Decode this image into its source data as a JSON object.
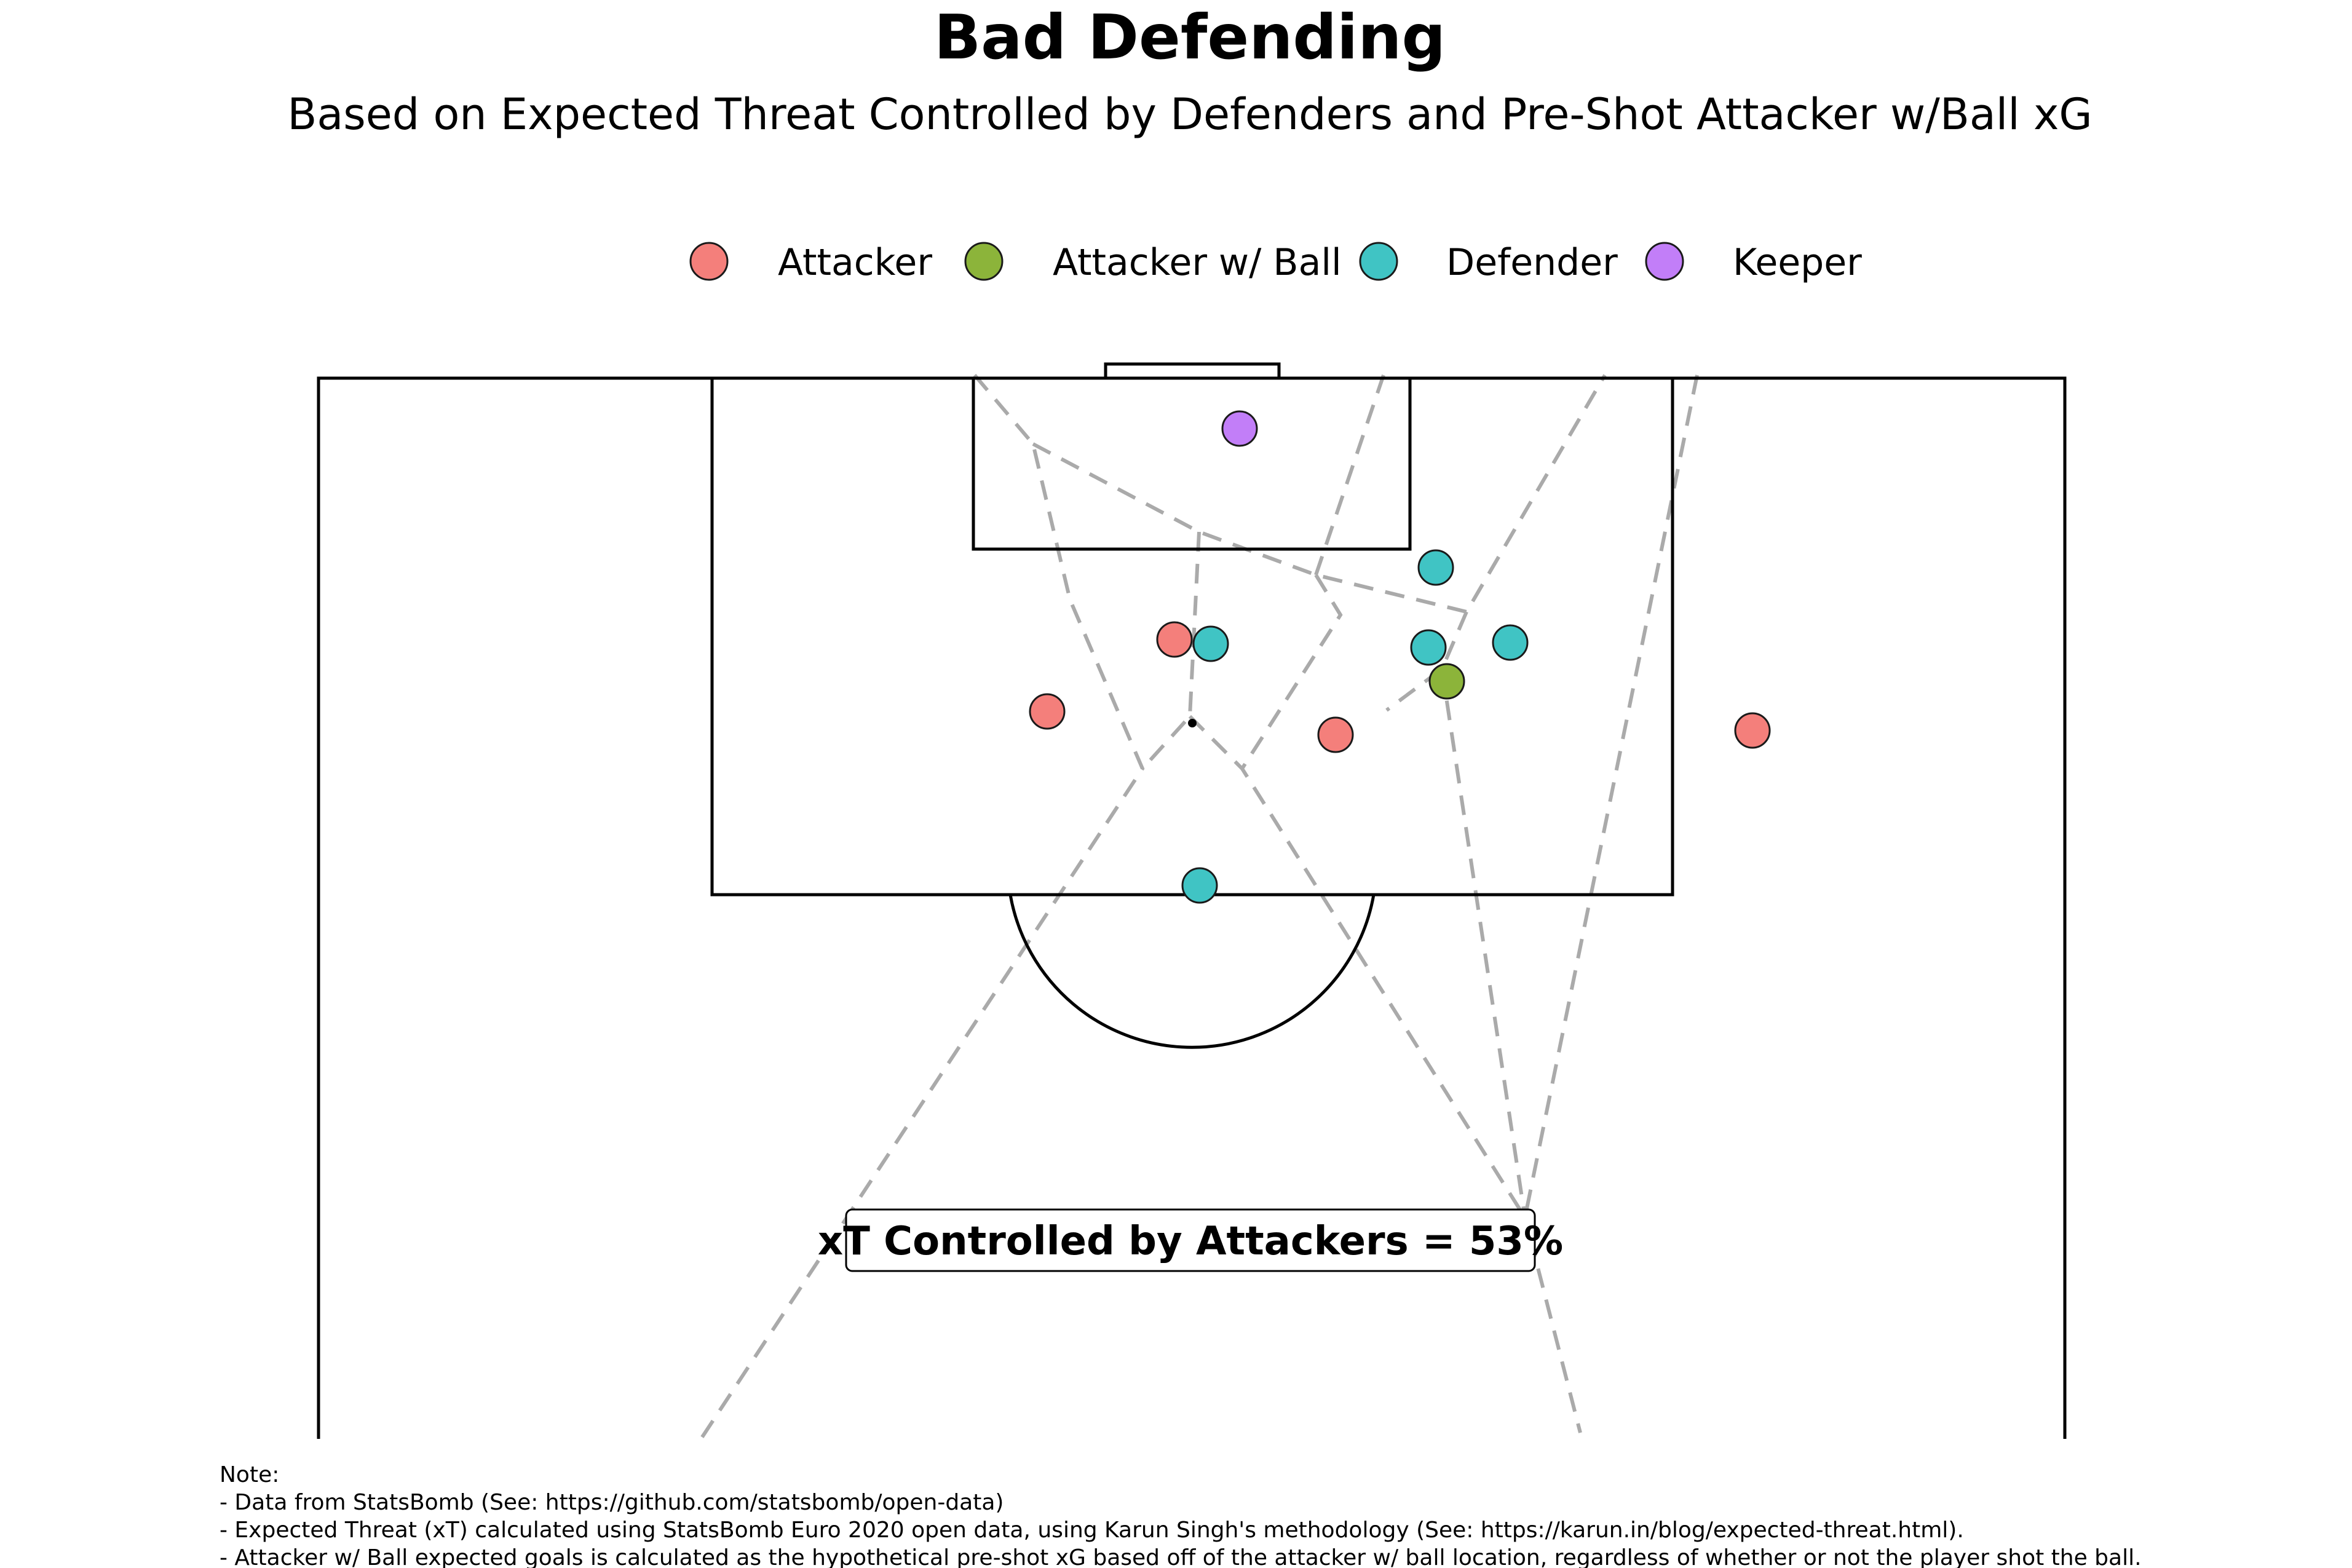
{
  "title": "Bad Defending",
  "subtitle": "Based on Expected Threat Controlled by Defenders and Pre-Shot Attacker w/Ball xG",
  "legend": [
    {
      "label": "Attacker",
      "color": "#f47f7b",
      "role": "attacker"
    },
    {
      "label": "Attacker w/ Ball",
      "color": "#8cb43a",
      "role": "attacker_ball"
    },
    {
      "label": "Defender",
      "color": "#40c4c4",
      "role": "defender"
    },
    {
      "label": "Keeper",
      "color": "#c27ef8",
      "role": "keeper"
    }
  ],
  "callout": "xT Controlled by Attackers = 53%",
  "notes": [
    "Note:",
    "- Data from StatsBomb (See: https://github.com/statsbomb/open-data)",
    "- Expected Threat (xT) calculated using StatsBomb Euro 2020 open data, using Karun Singh's methodology (See: https://karun.in/blog/expected-threat.html).",
    "- Attacker w/ Ball expected goals is calculated as the hypothetical pre-shot xG based off of the attacker w/ ball location, regardless of whether or not the player shot the ball."
  ]
}
